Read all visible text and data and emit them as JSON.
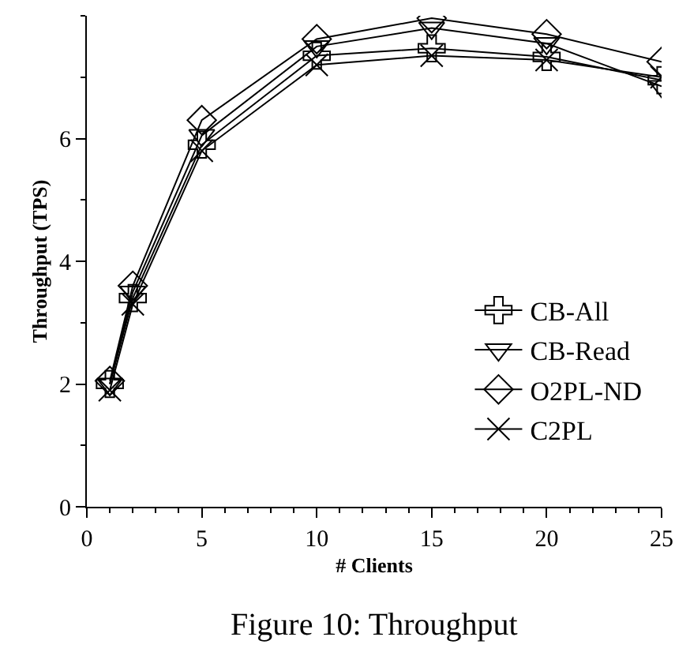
{
  "chart_data": {
    "type": "line",
    "xlabel": "# Clients",
    "ylabel": "Throughput (TPS)",
    "x": [
      1,
      2,
      5,
      10,
      15,
      20,
      25
    ],
    "series": [
      {
        "name": "CB-All",
        "color": "#000000",
        "marker": "cross",
        "values": [
          2.0,
          3.4,
          5.9,
          7.35,
          7.47,
          7.33,
          6.95
        ]
      },
      {
        "name": "CB-Read",
        "color": "#000000",
        "marker": "triangle",
        "values": [
          2.0,
          3.5,
          6.05,
          7.5,
          7.8,
          7.55,
          6.85
        ]
      },
      {
        "name": "O2PL-ND",
        "color": "#000000",
        "marker": "diamond",
        "values": [
          2.05,
          3.6,
          6.3,
          7.62,
          7.96,
          7.7,
          7.25
        ]
      },
      {
        "name": "C2PL",
        "color": "#000000",
        "marker": "x",
        "values": [
          1.9,
          3.3,
          5.8,
          7.2,
          7.35,
          7.28,
          7.0
        ]
      }
    ],
    "xlim": [
      0,
      25
    ],
    "xticks": [
      0,
      5,
      10,
      15,
      20,
      25
    ],
    "ylim": [
      0,
      8
    ],
    "yticks": [
      0,
      2,
      4,
      6
    ],
    "legend": "bottom right",
    "line_style": "solid",
    "annotations": [
      "Figure 10: Throughput"
    ]
  }
}
